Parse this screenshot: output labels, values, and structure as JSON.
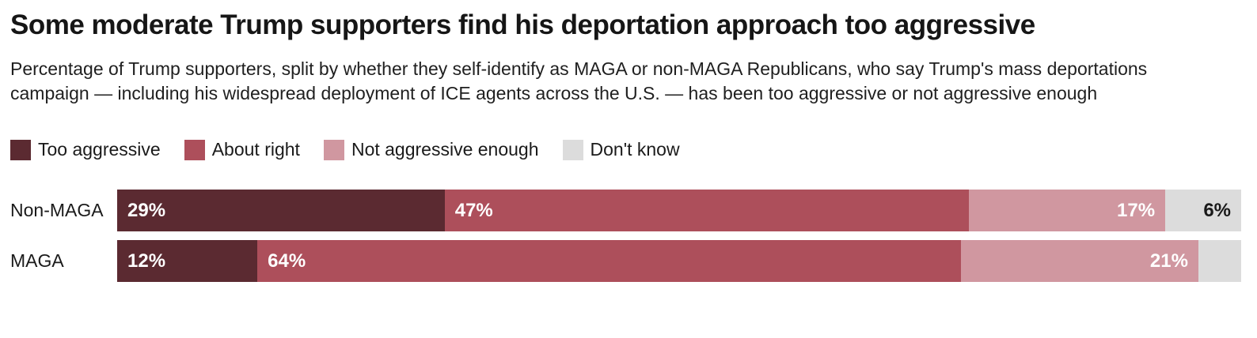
{
  "title": "Some moderate Trump supporters find his deportation approach too aggressive",
  "subtitle": "Percentage of Trump supporters, split by whether they self-identify as MAGA or non-MAGA Republicans, who say Trump's mass deportations campaign — including his widespread deployment of ICE agents across the U.S. — has been too aggressive or not aggressive enough",
  "colors": {
    "too_aggressive": "#5b2a31",
    "about_right": "#ad4f5b",
    "not_aggressive_enough": "#d097a0",
    "dont_know": "#dcdcdc",
    "label_on_dark": "#ffffff",
    "label_on_light": "#1a1a1a",
    "text": "#1a1a1a"
  },
  "legend": [
    {
      "label": "Too aggressive",
      "color": "#5b2a31"
    },
    {
      "label": "About right",
      "color": "#ad4f5b"
    },
    {
      "label": "Not aggressive enough",
      "color": "#d097a0"
    },
    {
      "label": "Don't know",
      "color": "#dcdcdc"
    }
  ],
  "chart_data": {
    "type": "bar",
    "orientation": "horizontal",
    "stacked": true,
    "categories": [
      "Non-MAGA",
      "MAGA"
    ],
    "series": [
      {
        "name": "Too aggressive",
        "color": "#5b2a31",
        "values": [
          29,
          12
        ],
        "value_labels": [
          "29%",
          "12%"
        ],
        "label_align": "left",
        "label_color": "#ffffff"
      },
      {
        "name": "About right",
        "color": "#ad4f5b",
        "values": [
          47,
          64
        ],
        "value_labels": [
          "47%",
          "64%"
        ],
        "label_align": "left",
        "label_color": "#ffffff"
      },
      {
        "name": "Not aggressive enough",
        "color": "#d097a0",
        "values": [
          17,
          21
        ],
        "value_labels": [
          "17%",
          "21%"
        ],
        "label_align": "right",
        "label_color": "#ffffff"
      },
      {
        "name": "Don't know",
        "color": "#dcdcdc",
        "values": [
          6,
          3
        ],
        "value_labels": [
          "6%",
          ""
        ],
        "label_align": "right",
        "label_color": "#1a1a1a"
      }
    ],
    "xlim": [
      0,
      100
    ],
    "grid": false,
    "legend_position": "top"
  }
}
